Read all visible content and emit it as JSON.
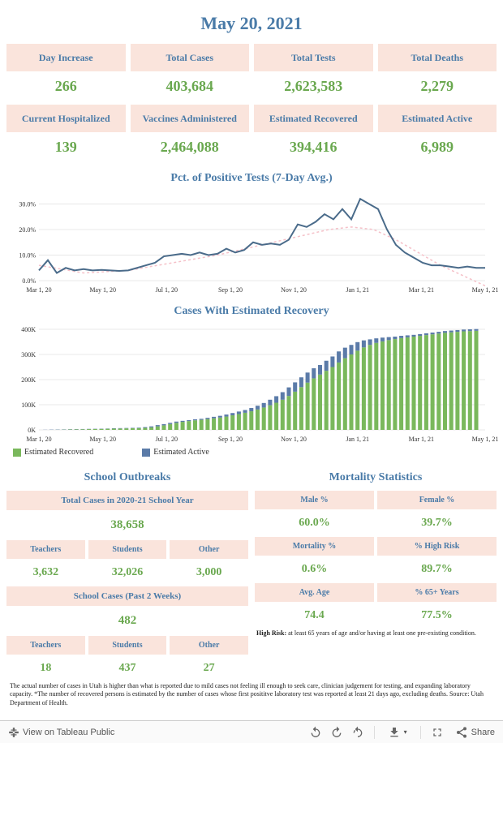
{
  "date": "May 20, 2021",
  "top_stats_row1": [
    {
      "label": "Day Increase",
      "value": "266"
    },
    {
      "label": "Total Cases",
      "value": "403,684"
    },
    {
      "label": "Total Tests",
      "value": "2,623,583"
    },
    {
      "label": "Total Deaths",
      "value": "2,279"
    }
  ],
  "top_stats_row2": [
    {
      "label": "Current Hospitalized",
      "value": "139"
    },
    {
      "label": "Vaccines Administered",
      "value": "2,464,088"
    },
    {
      "label": "Estimated Recovered",
      "value": "394,416"
    },
    {
      "label": "Estimated Active",
      "value": "6,989"
    }
  ],
  "chart1": {
    "title": "Pct. of Positive Tests (7-Day Avg.)",
    "type": "line",
    "line_color": "#4a6b8a",
    "dashed_color": "#f5c0c8",
    "background": "#ffffff",
    "grid_color": "#e8e8e8",
    "ylim": [
      0,
      33
    ],
    "yticks": [
      0,
      10,
      20,
      30
    ],
    "ytick_labels": [
      "0.0%",
      "10.0%",
      "20.0%",
      "30.0%"
    ],
    "x_labels": [
      "Mar 1, 20",
      "May 1, 20",
      "Jul 1, 20",
      "Sep 1, 20",
      "Nov 1, 20",
      "Jan 1, 21",
      "Mar 1, 21",
      "May 1, 21"
    ],
    "x_positions": [
      0,
      0.143,
      0.286,
      0.429,
      0.571,
      0.714,
      0.857,
      1.0
    ],
    "line_data": [
      [
        0,
        4
      ],
      [
        0.02,
        8
      ],
      [
        0.04,
        3
      ],
      [
        0.06,
        5
      ],
      [
        0.08,
        4
      ],
      [
        0.1,
        4.5
      ],
      [
        0.12,
        4
      ],
      [
        0.14,
        4.2
      ],
      [
        0.16,
        4
      ],
      [
        0.18,
        3.8
      ],
      [
        0.2,
        4
      ],
      [
        0.22,
        5
      ],
      [
        0.24,
        6
      ],
      [
        0.26,
        7
      ],
      [
        0.28,
        9.5
      ],
      [
        0.3,
        10
      ],
      [
        0.32,
        10.5
      ],
      [
        0.34,
        10
      ],
      [
        0.36,
        11
      ],
      [
        0.38,
        10
      ],
      [
        0.4,
        10.5
      ],
      [
        0.42,
        12.5
      ],
      [
        0.44,
        11
      ],
      [
        0.46,
        12
      ],
      [
        0.48,
        15
      ],
      [
        0.5,
        14
      ],
      [
        0.52,
        14.5
      ],
      [
        0.54,
        14
      ],
      [
        0.56,
        16
      ],
      [
        0.58,
        22
      ],
      [
        0.6,
        21
      ],
      [
        0.62,
        23
      ],
      [
        0.64,
        26
      ],
      [
        0.66,
        24
      ],
      [
        0.68,
        28
      ],
      [
        0.7,
        24
      ],
      [
        0.72,
        32
      ],
      [
        0.74,
        30
      ],
      [
        0.76,
        28
      ],
      [
        0.78,
        20
      ],
      [
        0.8,
        14
      ],
      [
        0.82,
        11
      ],
      [
        0.84,
        9
      ],
      [
        0.86,
        7
      ],
      [
        0.88,
        6
      ],
      [
        0.9,
        6
      ],
      [
        0.92,
        5.5
      ],
      [
        0.94,
        5
      ],
      [
        0.96,
        5.5
      ],
      [
        0.98,
        5
      ],
      [
        1,
        5
      ]
    ],
    "dashed_data": [
      [
        0,
        6
      ],
      [
        0.1,
        3
      ],
      [
        0.2,
        4
      ],
      [
        0.3,
        7
      ],
      [
        0.4,
        10
      ],
      [
        0.5,
        14
      ],
      [
        0.6,
        18
      ],
      [
        0.65,
        20
      ],
      [
        0.7,
        21
      ],
      [
        0.75,
        20
      ],
      [
        0.8,
        16
      ],
      [
        0.85,
        11
      ],
      [
        0.9,
        6
      ],
      [
        0.95,
        2
      ],
      [
        1,
        -2
      ]
    ]
  },
  "chart2": {
    "title": "Cases With Estimated Recovery",
    "type": "stacked-bar",
    "recovered_color": "#7ab85c",
    "active_color": "#5b7ba8",
    "background": "#ffffff",
    "grid_color": "#e8e8e8",
    "ylim": [
      0,
      400
    ],
    "yticks": [
      0,
      100,
      200,
      300,
      400
    ],
    "ytick_labels": [
      "0K",
      "100K",
      "200K",
      "300K",
      "400K"
    ],
    "x_labels": [
      "Mar 1, 20",
      "May 1, 20",
      "Jul 1, 20",
      "Sep 1, 20",
      "Nov 1, 20",
      "Jan 1, 21",
      "Mar 1, 21",
      "May 1, 21"
    ],
    "x_positions": [
      0,
      0.143,
      0.286,
      0.429,
      0.571,
      0.714,
      0.857,
      1.0
    ],
    "bars": [
      {
        "x": 0.0,
        "r": 0,
        "a": 0
      },
      {
        "x": 0.014,
        "r": 0,
        "a": 0.5
      },
      {
        "x": 0.028,
        "r": 0,
        "a": 1
      },
      {
        "x": 0.042,
        "r": 0.5,
        "a": 1
      },
      {
        "x": 0.056,
        "r": 1,
        "a": 1
      },
      {
        "x": 0.07,
        "r": 1.5,
        "a": 1
      },
      {
        "x": 0.084,
        "r": 2,
        "a": 1
      },
      {
        "x": 0.098,
        "r": 2.5,
        "a": 1
      },
      {
        "x": 0.112,
        "r": 3,
        "a": 1
      },
      {
        "x": 0.126,
        "r": 3.5,
        "a": 1
      },
      {
        "x": 0.14,
        "r": 4,
        "a": 1
      },
      {
        "x": 0.154,
        "r": 4.5,
        "a": 1
      },
      {
        "x": 0.168,
        "r": 5,
        "a": 1.5
      },
      {
        "x": 0.182,
        "r": 5.5,
        "a": 1.5
      },
      {
        "x": 0.196,
        "r": 6,
        "a": 1.5
      },
      {
        "x": 0.21,
        "r": 6.5,
        "a": 1.5
      },
      {
        "x": 0.224,
        "r": 7,
        "a": 2
      },
      {
        "x": 0.238,
        "r": 8,
        "a": 3
      },
      {
        "x": 0.252,
        "r": 10,
        "a": 4
      },
      {
        "x": 0.266,
        "r": 14,
        "a": 5
      },
      {
        "x": 0.28,
        "r": 18,
        "a": 5
      },
      {
        "x": 0.294,
        "r": 23,
        "a": 5
      },
      {
        "x": 0.308,
        "r": 28,
        "a": 5
      },
      {
        "x": 0.322,
        "r": 32,
        "a": 4
      },
      {
        "x": 0.336,
        "r": 35,
        "a": 4
      },
      {
        "x": 0.35,
        "r": 38,
        "a": 4
      },
      {
        "x": 0.364,
        "r": 40,
        "a": 4
      },
      {
        "x": 0.378,
        "r": 43,
        "a": 5
      },
      {
        "x": 0.392,
        "r": 46,
        "a": 6
      },
      {
        "x": 0.406,
        "r": 49,
        "a": 7
      },
      {
        "x": 0.42,
        "r": 53,
        "a": 8
      },
      {
        "x": 0.434,
        "r": 58,
        "a": 9
      },
      {
        "x": 0.448,
        "r": 63,
        "a": 10
      },
      {
        "x": 0.462,
        "r": 68,
        "a": 11
      },
      {
        "x": 0.476,
        "r": 74,
        "a": 13
      },
      {
        "x": 0.49,
        "r": 81,
        "a": 15
      },
      {
        "x": 0.504,
        "r": 89,
        "a": 18
      },
      {
        "x": 0.518,
        "r": 98,
        "a": 22
      },
      {
        "x": 0.532,
        "r": 108,
        "a": 26
      },
      {
        "x": 0.546,
        "r": 120,
        "a": 30
      },
      {
        "x": 0.56,
        "r": 135,
        "a": 34
      },
      {
        "x": 0.574,
        "r": 152,
        "a": 37
      },
      {
        "x": 0.588,
        "r": 170,
        "a": 39
      },
      {
        "x": 0.602,
        "r": 188,
        "a": 40
      },
      {
        "x": 0.616,
        "r": 205,
        "a": 40
      },
      {
        "x": 0.63,
        "r": 220,
        "a": 38
      },
      {
        "x": 0.644,
        "r": 235,
        "a": 40
      },
      {
        "x": 0.658,
        "r": 250,
        "a": 42
      },
      {
        "x": 0.672,
        "r": 268,
        "a": 44
      },
      {
        "x": 0.686,
        "r": 285,
        "a": 42
      },
      {
        "x": 0.7,
        "r": 300,
        "a": 38
      },
      {
        "x": 0.714,
        "r": 315,
        "a": 34
      },
      {
        "x": 0.728,
        "r": 328,
        "a": 28
      },
      {
        "x": 0.742,
        "r": 338,
        "a": 22
      },
      {
        "x": 0.756,
        "r": 346,
        "a": 18
      },
      {
        "x": 0.77,
        "r": 352,
        "a": 15
      },
      {
        "x": 0.784,
        "r": 357,
        "a": 12
      },
      {
        "x": 0.798,
        "r": 361,
        "a": 10
      },
      {
        "x": 0.812,
        "r": 365,
        "a": 9
      },
      {
        "x": 0.826,
        "r": 368,
        "a": 8
      },
      {
        "x": 0.84,
        "r": 371,
        "a": 7
      },
      {
        "x": 0.854,
        "r": 374,
        "a": 7
      },
      {
        "x": 0.868,
        "r": 377,
        "a": 7
      },
      {
        "x": 0.882,
        "r": 380,
        "a": 7
      },
      {
        "x": 0.896,
        "r": 383,
        "a": 7
      },
      {
        "x": 0.91,
        "r": 386,
        "a": 7
      },
      {
        "x": 0.924,
        "r": 388,
        "a": 7
      },
      {
        "x": 0.938,
        "r": 390,
        "a": 7
      },
      {
        "x": 0.952,
        "r": 392,
        "a": 7
      },
      {
        "x": 0.966,
        "r": 393,
        "a": 7
      },
      {
        "x": 0.98,
        "r": 394,
        "a": 7
      }
    ],
    "legend": [
      {
        "label": "Estimated Recovered",
        "color": "#7ab85c"
      },
      {
        "label": "Estimated Active",
        "color": "#5b7ba8"
      }
    ]
  },
  "school": {
    "title": "School Outbreaks",
    "year_header": "Total Cases in 2020-21 School Year",
    "year_value": "38,658",
    "breakdown_headers": [
      "Teachers",
      "Students",
      "Other"
    ],
    "breakdown_values": [
      "3,632",
      "32,026",
      "3,000"
    ],
    "recent_header": "School Cases (Past 2 Weeks)",
    "recent_value": "482",
    "recent_breakdown_values": [
      "18",
      "437",
      "27"
    ]
  },
  "mortality": {
    "title": "Mortality Statistics",
    "rows": [
      {
        "headers": [
          "Male %",
          "Female %"
        ],
        "values": [
          "60.0%",
          "39.7%"
        ]
      },
      {
        "headers": [
          "Mortality %",
          "% High Risk"
        ],
        "values": [
          "0.6%",
          "89.7%"
        ]
      },
      {
        "headers": [
          "Avg. Age",
          "% 65+ Years"
        ],
        "values": [
          "74.4",
          "77.5%"
        ]
      }
    ],
    "note_label": "High Risk:",
    "note": "at least 65 years of age and/or having at least one pre-existing condition."
  },
  "disclaimer": "The actual number of cases in Utah is higher than what is reported due to mild cases not feeling ill enough to seek care, clinician judgement for testing, and expanding laboratory capacity. *The number of recovered persons is estimated by the number of cases whose first posititve laboratory test was reported at least 21 days ago, excluding deaths. Source: Utah Department of Health.",
  "toolbar": {
    "view_label": "View on Tableau Public",
    "share_label": "Share"
  },
  "colors": {
    "header_bg": "#fae4dc",
    "header_text": "#4a7ba8",
    "value_text": "#6aa84f"
  }
}
